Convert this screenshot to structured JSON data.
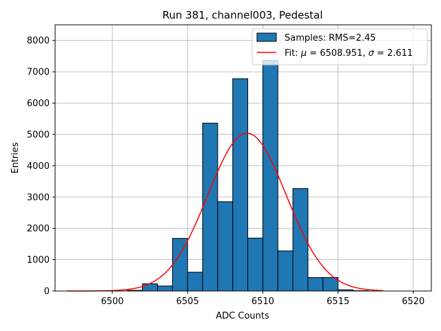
{
  "chart_data": {
    "type": "bar",
    "title": "Run 381, channel003, Pedestal",
    "xlabel": "ADC Counts",
    "ylabel": "Entries",
    "xlim": [
      6496.2,
      6521.2
    ],
    "ylim": [
      0,
      8500
    ],
    "xticks": [
      6500,
      6505,
      6510,
      6515,
      6520
    ],
    "yticks": [
      0,
      1000,
      2000,
      3000,
      4000,
      5000,
      6000,
      7000,
      8000
    ],
    "grid": true,
    "legend_position": "top-right",
    "colors": {
      "bar": "#1f77b4",
      "fit": "#ff0000",
      "edge": "#000000"
    },
    "histogram": {
      "name": "Samples: RMS=2.45",
      "bins": [
        {
          "x0": 6501,
          "x1": 6502,
          "count": 20
        },
        {
          "x0": 6502,
          "x1": 6503,
          "count": 230
        },
        {
          "x0": 6503,
          "x1": 6504,
          "count": 160
        },
        {
          "x0": 6504,
          "x1": 6505,
          "count": 1680
        },
        {
          "x0": 6505,
          "x1": 6506,
          "count": 600
        },
        {
          "x0": 6506,
          "x1": 6507,
          "count": 5360
        },
        {
          "x0": 6507,
          "x1": 6508,
          "count": 2850
        },
        {
          "x0": 6508,
          "x1": 6509,
          "count": 6780
        },
        {
          "x0": 6509,
          "x1": 6510,
          "count": 1690
        },
        {
          "x0": 6510,
          "x1": 6511,
          "count": 7370
        },
        {
          "x0": 6511,
          "x1": 6512,
          "count": 1280
        },
        {
          "x0": 6512,
          "x1": 6513,
          "count": 3270
        },
        {
          "x0": 6513,
          "x1": 6514,
          "count": 430
        },
        {
          "x0": 6514,
          "x1": 6515,
          "count": 430
        },
        {
          "x0": 6515,
          "x1": 6516,
          "count": 40
        },
        {
          "x0": 6516,
          "x1": 6517,
          "count": 10
        }
      ]
    },
    "fit": {
      "name": "Fit: μ = 6508.951, σ = 2.611",
      "mu_label": "μ",
      "sigma_label": "σ",
      "mu": 6508.951,
      "sigma": 2.611,
      "amplitude": 5040,
      "x_range": [
        6497,
        6518
      ]
    }
  }
}
